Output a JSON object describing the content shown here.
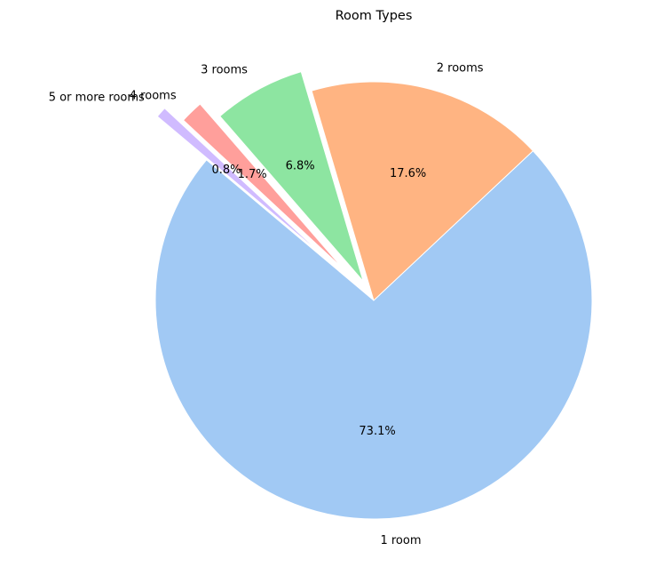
{
  "chart_data": {
    "type": "pie",
    "title": "Room Types",
    "start_angle_deg": 140,
    "direction": "counterclockwise",
    "slices": [
      {
        "label": "1 room",
        "value": 73.1,
        "pct_label": "73.1%",
        "color": "#a1c9f4",
        "explode": 0.0
      },
      {
        "label": "2 rooms",
        "value": 17.6,
        "pct_label": "17.6%",
        "color": "#ffb482",
        "explode": 0.0
      },
      {
        "label": "3 rooms",
        "value": 6.8,
        "pct_label": "6.8%",
        "color": "#8de5a1",
        "explode": 0.1
      },
      {
        "label": "4 rooms",
        "value": 1.7,
        "pct_label": "1.7%",
        "color": "#ff9f9b",
        "explode": 0.2
      },
      {
        "label": "5 or more rooms",
        "value": 0.8,
        "pct_label": "0.8%",
        "color": "#d0bbff",
        "explode": 0.3
      }
    ]
  }
}
